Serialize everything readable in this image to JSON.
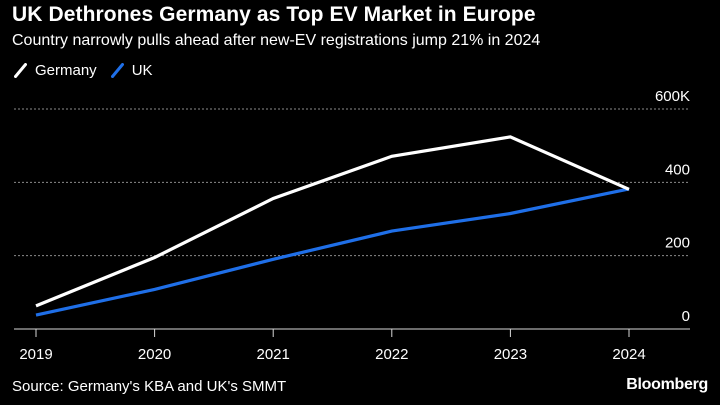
{
  "header": {
    "title": "UK Dethrones Germany as Top EV Market in Europe",
    "subtitle": "Country narrowly pulls ahead after new-EV registrations jump 21% in 2024"
  },
  "footer": {
    "source": "Source: Germany's KBA and UK's SMMT",
    "brand": "Bloomberg"
  },
  "colors": {
    "background": "#000000",
    "germany": "#ffffff",
    "uk": "#1f6fe8",
    "grid": "#8c8c8c",
    "text": "#ffffff"
  },
  "chart_data": {
    "type": "line",
    "title": "UK Dethrones Germany as Top EV Market in Europe",
    "xlabel": "",
    "ylabel": "",
    "categories": [
      "2019",
      "2020",
      "2021",
      "2022",
      "2023",
      "2024"
    ],
    "series": [
      {
        "name": "Germany",
        "values": [
          63,
          195,
          356,
          471,
          524,
          381
        ]
      },
      {
        "name": "UK",
        "values": [
          38,
          108,
          190,
          267,
          315,
          382
        ]
      }
    ],
    "ylim": [
      0,
      600
    ],
    "yticks": [
      0,
      200,
      400,
      600
    ],
    "ytick_labels": [
      "0",
      "200",
      "400",
      "600K"
    ],
    "grid": true,
    "legend": "top-left"
  }
}
